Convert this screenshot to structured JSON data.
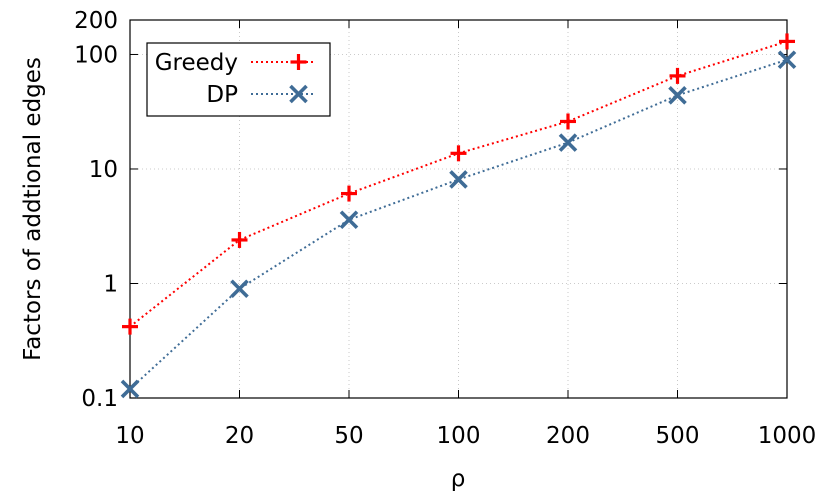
{
  "chart_data": {
    "type": "line",
    "title": "",
    "xlabel": "ρ",
    "ylabel": "Factors of addtional edges",
    "categories": [
      "10",
      "20",
      "50",
      "100",
      "200",
      "500",
      "1000"
    ],
    "yscale": "log",
    "ylim": [
      0.1,
      200
    ],
    "y_ticks": [
      "0.1",
      "1",
      "10",
      "100",
      "200"
    ],
    "grid": "on",
    "legend_position": "top-left",
    "series": [
      {
        "name": "Greedy",
        "color": "#ff0000",
        "marker": "plus",
        "line_style": "dotted",
        "values": [
          0.42,
          2.4,
          6.1,
          13.7,
          26,
          65,
          130
        ]
      },
      {
        "name": "DP",
        "color": "#3f6c96",
        "marker": "x",
        "line_style": "dotted",
        "values": [
          0.12,
          0.9,
          3.6,
          8.1,
          17,
          44,
          90
        ]
      }
    ]
  }
}
